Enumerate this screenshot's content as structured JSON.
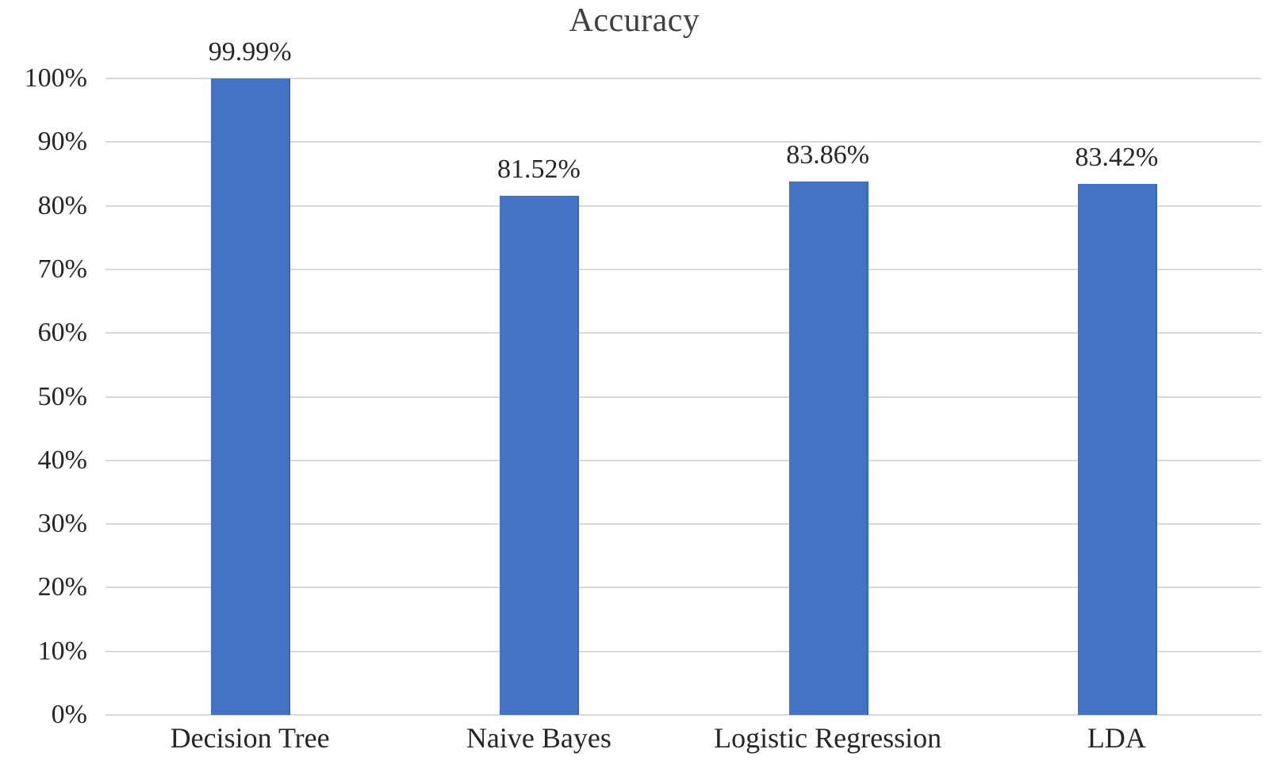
{
  "chart_data": {
    "type": "bar",
    "title": "Accuracy",
    "categories": [
      "Decision Tree",
      "Naive Bayes",
      "Logistic Regression",
      "LDA"
    ],
    "values": [
      99.99,
      81.52,
      83.86,
      83.42
    ],
    "data_labels": [
      "99.99%",
      "81.52%",
      "83.86%",
      "83.42%"
    ],
    "xlabel": "",
    "ylabel": "",
    "ylim": [
      0,
      100
    ],
    "ytick_step": 10,
    "ytick_labels": [
      "0%",
      "10%",
      "20%",
      "30%",
      "40%",
      "50%",
      "60%",
      "70%",
      "80%",
      "90%",
      "100%"
    ],
    "grid": "horizontal-only",
    "legend": "none",
    "bar_color": "#4472C4",
    "bar_edge_color": "#3A66B5",
    "gridline_color": "#D9D9D9",
    "title_color": "#404040",
    "text_color": "#262626"
  }
}
